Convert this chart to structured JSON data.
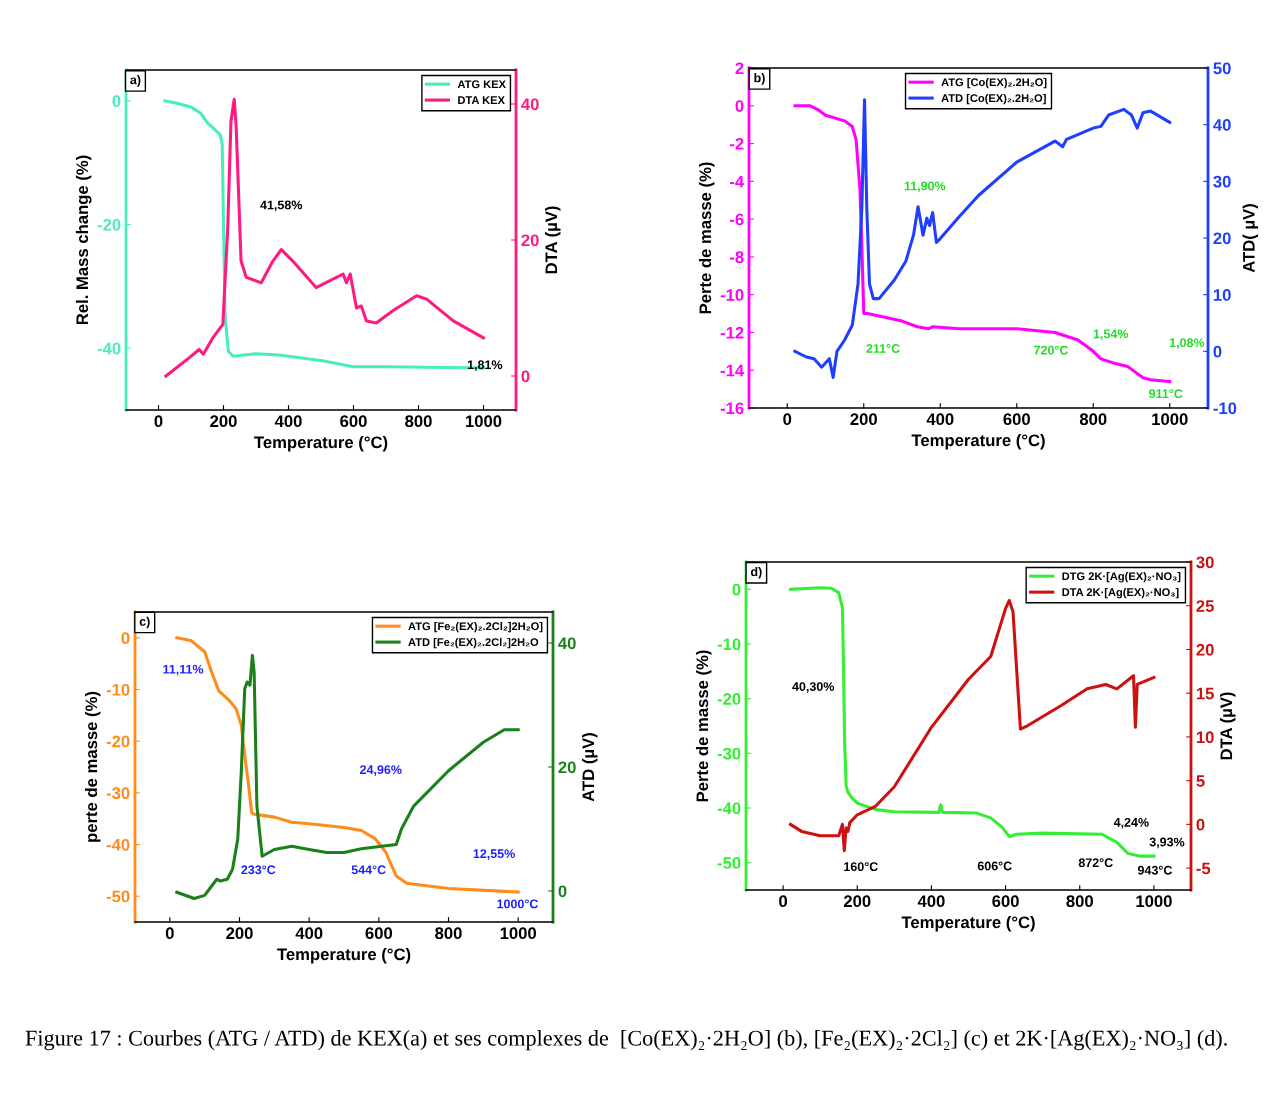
{
  "chart_data": [
    {
      "type": "line",
      "title": "a)",
      "xlabel": "Temperature (°C)",
      "ylabel": "Rel. Mass change (%)",
      "y2label": "DTA (µV)",
      "xlim": [
        -100,
        1100
      ],
      "xticks": [
        0,
        200,
        400,
        600,
        800,
        1000
      ],
      "ylim": [
        -50,
        5
      ],
      "yticks": [
        -40,
        -20,
        0
      ],
      "y2lim": [
        -5,
        45
      ],
      "y2ticks": [
        0,
        20,
        40
      ],
      "legend": "top right",
      "annotations": [
        "41,58%",
        "1,81%",
        "Figure 17 : Courbes (ATG / ATD) de KEX(a) et ses complexes de  [Co(EX)₂·2H₂O] (b), [Fe₂(EX)₂·2Cl₂] (c) et 2K·[Ag(EX)₂·NO₃] (d)."
      ],
      "series": [
        {
          "name": "ATG KEX",
          "color": "#48ecc0",
          "x": [
            20,
            50,
            100,
            130,
            150,
            170,
            190,
            196,
            200,
            205,
            215,
            230,
            300,
            370,
            500,
            600,
            700,
            1000
          ],
          "values": [
            0,
            -0.3,
            -1,
            -2,
            -3.5,
            -4.5,
            -5.5,
            -7,
            -20,
            -35,
            -40.5,
            -41.3,
            -40.9,
            -41.1,
            -42,
            -43,
            -43,
            -43.2
          ]
        },
        {
          "name": "DTA KEX",
          "color": "#ff1a80",
          "axis": "y2",
          "x": [
            23,
            95,
            125,
            138,
            167,
            198,
            213,
            223,
            233,
            239,
            254,
            270,
            316,
            352,
            378,
            413,
            485,
            568,
            578,
            590,
            609,
            624,
            640,
            670,
            721,
            794,
            825,
            907,
            1000
          ],
          "values": [
            0,
            2.7,
            3.9,
            3.2,
            5.6,
            7.6,
            21.8,
            37.5,
            40.7,
            36.6,
            16.9,
            14.5,
            13.7,
            16.9,
            18.6,
            16.9,
            13,
            15,
            13.7,
            15,
            10,
            10.3,
            8.1,
            7.8,
            9.6,
            11.8,
            11.3,
            8.1,
            5.6
          ]
        }
      ]
    },
    {
      "type": "line",
      "title": "b)",
      "xlabel": "Temperature (°C)",
      "ylabel": "Perte de masse (%)",
      "y2label": "ATD( µV)",
      "xlim": [
        -100,
        1100
      ],
      "xticks": [
        0,
        200,
        400,
        600,
        800,
        1000
      ],
      "ylim": [
        -16,
        2
      ],
      "yticks": [
        -16,
        -14,
        -12,
        -10,
        -8,
        -6,
        -4,
        -2,
        0,
        2
      ],
      "y2lim": [
        -10,
        50
      ],
      "y2ticks": [
        -10,
        0,
        10,
        20,
        30,
        40,
        50
      ],
      "legend": "top",
      "annotations": [
        "11,90%",
        "211°C",
        "720°C",
        "1,54%",
        "1,08%",
        "911°C"
      ],
      "series": [
        {
          "name": "ATG [Co(EX)₂.2H₂O]",
          "color": "#ff00ff",
          "x": [
            20,
            60,
            80,
            100,
            150,
            170,
            180,
            190,
            195,
            200,
            210,
            300,
            340,
            370,
            380,
            450,
            600,
            700,
            760,
            800,
            820,
            850,
            890,
            910,
            930,
            950,
            1000
          ],
          "values": [
            0,
            0,
            -0.2,
            -0.5,
            -0.8,
            -1.1,
            -1.8,
            -4.4,
            -7.4,
            -11,
            -11,
            -11.4,
            -11.7,
            -11.8,
            -11.7,
            -11.8,
            -11.8,
            -12,
            -12.4,
            -13,
            -13.4,
            -13.6,
            -13.8,
            -14.1,
            -14.4,
            -14.5,
            -14.6
          ]
        },
        {
          "name": "ATD [Co(EX)₂.2H₂O]",
          "color": "#1f3fff",
          "axis": "y2",
          "x": [
            20,
            50,
            70,
            90,
            110,
            120,
            130,
            150,
            170,
            185,
            195,
            202,
            208,
            215,
            225,
            240,
            280,
            310,
            330,
            342,
            355,
            365,
            372,
            380,
            390,
            400,
            450,
            500,
            600,
            700,
            720,
            730,
            800,
            820,
            840,
            880,
            900,
            915,
            930,
            950,
            1000
          ],
          "values": [
            0,
            -1,
            -1.3,
            -2.8,
            -1.3,
            -4.6,
            0,
            2,
            4.6,
            11.9,
            25.2,
            44.4,
            25.2,
            11.9,
            9.3,
            9.3,
            12.6,
            15.9,
            20.5,
            25.5,
            20.5,
            23.5,
            22.2,
            24.5,
            19.2,
            19.9,
            23.8,
            27.5,
            33.4,
            37.1,
            36.1,
            37.4,
            39.4,
            39.7,
            41.7,
            42.7,
            41.7,
            39.4,
            42.1,
            42.4,
            40.4
          ]
        }
      ]
    },
    {
      "type": "line",
      "title": "c)",
      "xlabel": "Temperature (°C)",
      "ylabel": "perte de masse (%)",
      "y2label": "ATD (µV)",
      "xlim": [
        -100,
        1100
      ],
      "xticks": [
        0,
        200,
        400,
        600,
        800,
        1000
      ],
      "ylim": [
        -55,
        5
      ],
      "yticks": [
        -50,
        -40,
        -30,
        -20,
        -10,
        0
      ],
      "y2lim": [
        -5,
        45
      ],
      "y2ticks": [
        0,
        20,
        40
      ],
      "legend": "top right",
      "annotations": [
        "11,11%",
        "24,96%",
        "12,55%",
        "233°C",
        "544°C",
        "1000°C"
      ],
      "series": [
        {
          "name": "ATG [Fe₂(EX)₂.2Cl₂]2H₂O]",
          "color": "#ff8c1a",
          "x": [
            20,
            60,
            100,
            120,
            140,
            170,
            190,
            205,
            215,
            225,
            235,
            240,
            300,
            350,
            400,
            500,
            550,
            590,
            620,
            650,
            680,
            800,
            1000
          ],
          "values": [
            0,
            -0.5,
            -2.7,
            -6.6,
            -10.2,
            -12.1,
            -13.7,
            -16.9,
            -22.8,
            -27.9,
            -33.8,
            -34.1,
            -34.7,
            -35.7,
            -36,
            -36.7,
            -37.3,
            -38.9,
            -41.5,
            -46.1,
            -47.5,
            -48.5,
            -49.2
          ]
        },
        {
          "name": "ATD [Fe₂(EX)₂.2Cl₂]2H₂O",
          "color": "#1a801a",
          "axis": "y2",
          "x": [
            20,
            70,
            100,
            120,
            135,
            145,
            165,
            180,
            195,
            205,
            215,
            222,
            230,
            237,
            242,
            250,
            265,
            300,
            350,
            400,
            450,
            500,
            550,
            620,
            650,
            665,
            700,
            800,
            900,
            960,
            1000
          ],
          "values": [
            -0.2,
            -1.2,
            -0.7,
            0.8,
            1.9,
            1.6,
            1.9,
            3.5,
            8.4,
            19.1,
            32.6,
            33.7,
            33.2,
            38,
            35.3,
            13.7,
            5.6,
            6.7,
            7.2,
            6.7,
            6.2,
            6.2,
            6.8,
            7.3,
            7.5,
            10,
            13.7,
            19.4,
            24,
            26,
            26
          ]
        }
      ]
    },
    {
      "type": "line",
      "title": "d)",
      "xlabel": "Temperature (°C)",
      "ylabel": "Perte de masse (%)",
      "y2label": "DTA (µV)",
      "xlim": [
        -100,
        1100
      ],
      "xticks": [
        0,
        200,
        400,
        600,
        800,
        1000
      ],
      "ylim": [
        -55,
        5
      ],
      "yticks": [
        -50,
        -40,
        -30,
        -20,
        -10,
        0
      ],
      "y2lim": [
        -7.5,
        30
      ],
      "y2ticks": [
        -5,
        0,
        5,
        10,
        15,
        20,
        25,
        30
      ],
      "legend": "top right",
      "annotations": [
        "40,30%",
        "160°C",
        "606°C",
        "872°C",
        "943°C",
        "4,24%",
        "3,93%"
      ],
      "series": [
        {
          "name": "DTG 2K·[Ag(EX)₂·NO₃]",
          "color": "#33ee33",
          "x": [
            20,
            100,
            130,
            150,
            160,
            163,
            166,
            170,
            175,
            185,
            200,
            250,
            300,
            420,
            425,
            430,
            520,
            560,
            590,
            610,
            630,
            700,
            860,
            900,
            930,
            960,
            1000
          ],
          "values": [
            0,
            0.3,
            0.2,
            -0.6,
            -3.3,
            -14.2,
            -27.9,
            -36,
            -37.1,
            -38.1,
            -39.1,
            -40.3,
            -40.7,
            -40.8,
            -39.4,
            -40.8,
            -40.9,
            -41.8,
            -43.5,
            -45.2,
            -44.8,
            -44.6,
            -44.8,
            -46.3,
            -48.3,
            -48.8,
            -48.8
          ]
        },
        {
          "name": "DTA 2K·[Ag(EX)₂·NO₃]",
          "color": "#cc1111",
          "axis": "y2",
          "x": [
            20,
            50,
            100,
            150,
            160,
            165,
            170,
            175,
            180,
            200,
            250,
            300,
            400,
            500,
            560,
            600,
            610,
            620,
            640,
            660,
            750,
            820,
            870,
            900,
            945,
            950,
            955,
            1000
          ],
          "values": [
            0,
            -0.8,
            -1.3,
            -1.3,
            0,
            -3,
            -0.4,
            -0.8,
            0.2,
            1.1,
            2.1,
            4.3,
            11.1,
            16.6,
            19.2,
            24.7,
            25.6,
            24.3,
            10.9,
            11.3,
            13.6,
            15.5,
            16,
            15.5,
            17,
            11.1,
            16,
            16.8
          ]
        }
      ]
    }
  ]
}
